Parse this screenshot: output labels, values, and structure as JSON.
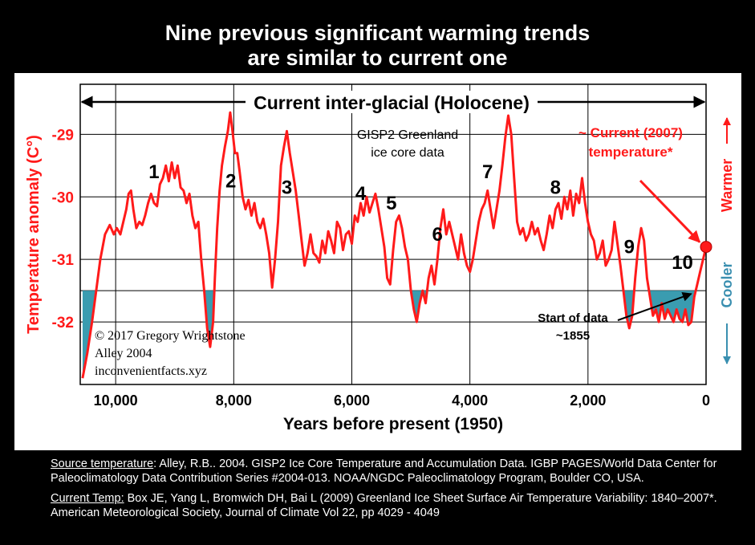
{
  "title_line1": "Nine previous significant warming trends",
  "title_line2": "are similar to current one",
  "colors": {
    "background": "#000000",
    "panel": "#ffffff",
    "curve": "#ff1a1a",
    "fill": "#3a9cb0",
    "arrow": "#000000",
    "axis_red": "#ff1a1a",
    "cooler": "#3a8fb0"
  },
  "chart_data": {
    "type": "line",
    "title": "",
    "xlabel": "Years before present (1950)",
    "ylabel": "Temperature anomaly (C°)",
    "x_ticks": [
      "10,000",
      "8,000",
      "6,000",
      "4,000",
      "2,000",
      "0"
    ],
    "x_tick_values": [
      10000,
      8000,
      6000,
      4000,
      2000,
      0
    ],
    "y_ticks": [
      "-29",
      "-30",
      "-31",
      "-32"
    ],
    "y_tick_values": [
      -29,
      -30,
      -31,
      -32
    ],
    "xlim": [
      10600,
      0
    ],
    "ylim": [
      -33.0,
      -28.2
    ],
    "grid": "vertical and horizontal lines at tick positions",
    "reference_line": -31.5,
    "holocene_label": "Current inter-glacial (Holocene)",
    "data_label": "GISP2 Greenland ice core data",
    "current_label": "~ Current (2007) temperature*",
    "start_label": "Start of data ~1855",
    "warmer_label": "Warmer",
    "cooler_label": "Cooler",
    "copyright": [
      "© 2017 Gregory Wrightstone",
      "Alley 2004",
      "inconvenientfacts.xyz"
    ],
    "warming_trends": [
      {
        "label": "1",
        "x": 9350,
        "y": -29.7
      },
      {
        "label": "2",
        "x": 8050,
        "y": -29.85
      },
      {
        "label": "3",
        "x": 7100,
        "y": -29.95
      },
      {
        "label": "4",
        "x": 5850,
        "y": -30.05
      },
      {
        "label": "5",
        "x": 5330,
        "y": -30.2
      },
      {
        "label": "6",
        "x": 4550,
        "y": -30.7
      },
      {
        "label": "7",
        "x": 3700,
        "y": -29.7
      },
      {
        "label": "8",
        "x": 2550,
        "y": -29.95
      },
      {
        "label": "9",
        "x": 1300,
        "y": -30.9
      },
      {
        "label": "10",
        "x": 400,
        "y": -31.15
      }
    ],
    "current_point": {
      "x": 0,
      "y": -30.8
    },
    "series": [
      {
        "values": [
          [
            10560,
            -32.9
          ],
          [
            10480,
            -32.5
          ],
          [
            10400,
            -32.0
          ],
          [
            10330,
            -31.5
          ],
          [
            10260,
            -31.0
          ],
          [
            10180,
            -30.6
          ],
          [
            10100,
            -30.45
          ],
          [
            10030,
            -30.6
          ],
          [
            9980,
            -30.5
          ],
          [
            9920,
            -30.6
          ],
          [
            9870,
            -30.4
          ],
          [
            9820,
            -30.2
          ],
          [
            9780,
            -29.95
          ],
          [
            9740,
            -29.9
          ],
          [
            9700,
            -30.2
          ],
          [
            9650,
            -30.5
          ],
          [
            9600,
            -30.4
          ],
          [
            9550,
            -30.45
          ],
          [
            9500,
            -30.3
          ],
          [
            9450,
            -30.1
          ],
          [
            9400,
            -29.95
          ],
          [
            9350,
            -30.1
          ],
          [
            9300,
            -30.15
          ],
          [
            9250,
            -29.8
          ],
          [
            9200,
            -29.7
          ],
          [
            9150,
            -29.5
          ],
          [
            9100,
            -29.75
          ],
          [
            9050,
            -29.45
          ],
          [
            9000,
            -29.7
          ],
          [
            8950,
            -29.5
          ],
          [
            8900,
            -29.85
          ],
          [
            8850,
            -29.9
          ],
          [
            8800,
            -30.1
          ],
          [
            8750,
            -29.95
          ],
          [
            8700,
            -30.3
          ],
          [
            8650,
            -30.5
          ],
          [
            8600,
            -30.4
          ],
          [
            8550,
            -31.0
          ],
          [
            8500,
            -31.5
          ],
          [
            8450,
            -32.1
          ],
          [
            8400,
            -32.4
          ],
          [
            8350,
            -32.0
          ],
          [
            8320,
            -31.3
          ],
          [
            8280,
            -30.5
          ],
          [
            8240,
            -29.9
          ],
          [
            8200,
            -29.5
          ],
          [
            8150,
            -29.2
          ],
          [
            8100,
            -28.95
          ],
          [
            8060,
            -28.65
          ],
          [
            8020,
            -28.95
          ],
          [
            7980,
            -29.3
          ],
          [
            7940,
            -29.3
          ],
          [
            7900,
            -29.6
          ],
          [
            7850,
            -30.0
          ],
          [
            7800,
            -30.2
          ],
          [
            7750,
            -30.05
          ],
          [
            7700,
            -30.3
          ],
          [
            7650,
            -30.1
          ],
          [
            7600,
            -30.4
          ],
          [
            7550,
            -30.5
          ],
          [
            7500,
            -30.35
          ],
          [
            7450,
            -30.6
          ],
          [
            7400,
            -30.9
          ],
          [
            7350,
            -31.45
          ],
          [
            7300,
            -31.0
          ],
          [
            7250,
            -30.4
          ],
          [
            7200,
            -29.5
          ],
          [
            7150,
            -29.2
          ],
          [
            7100,
            -28.95
          ],
          [
            7050,
            -29.3
          ],
          [
            7000,
            -29.6
          ],
          [
            6950,
            -29.9
          ],
          [
            6900,
            -30.3
          ],
          [
            6850,
            -30.7
          ],
          [
            6800,
            -31.1
          ],
          [
            6750,
            -30.9
          ],
          [
            6700,
            -30.6
          ],
          [
            6650,
            -30.9
          ],
          [
            6600,
            -30.95
          ],
          [
            6550,
            -31.05
          ],
          [
            6500,
            -30.7
          ],
          [
            6450,
            -30.9
          ],
          [
            6400,
            -30.55
          ],
          [
            6350,
            -30.7
          ],
          [
            6300,
            -30.9
          ],
          [
            6250,
            -30.4
          ],
          [
            6200,
            -30.5
          ],
          [
            6150,
            -30.85
          ],
          [
            6100,
            -30.6
          ],
          [
            6050,
            -30.55
          ],
          [
            6000,
            -30.75
          ],
          [
            5950,
            -30.3
          ],
          [
            5900,
            -30.4
          ],
          [
            5850,
            -30.1
          ],
          [
            5800,
            -30.3
          ],
          [
            5750,
            -30.0
          ],
          [
            5700,
            -30.25
          ],
          [
            5650,
            -30.1
          ],
          [
            5600,
            -29.95
          ],
          [
            5550,
            -30.2
          ],
          [
            5500,
            -30.5
          ],
          [
            5450,
            -30.8
          ],
          [
            5400,
            -31.3
          ],
          [
            5350,
            -31.4
          ],
          [
            5300,
            -30.85
          ],
          [
            5250,
            -30.4
          ],
          [
            5200,
            -30.3
          ],
          [
            5150,
            -30.5
          ],
          [
            5100,
            -30.8
          ],
          [
            5050,
            -31.0
          ],
          [
            5000,
            -31.5
          ],
          [
            4950,
            -31.8
          ],
          [
            4900,
            -32.0
          ],
          [
            4850,
            -31.7
          ],
          [
            4800,
            -31.5
          ],
          [
            4750,
            -31.7
          ],
          [
            4700,
            -31.3
          ],
          [
            4650,
            -31.1
          ],
          [
            4600,
            -31.4
          ],
          [
            4550,
            -31.0
          ],
          [
            4500,
            -30.5
          ],
          [
            4450,
            -30.2
          ],
          [
            4400,
            -30.6
          ],
          [
            4350,
            -30.4
          ],
          [
            4300,
            -30.6
          ],
          [
            4250,
            -30.8
          ],
          [
            4200,
            -31.0
          ],
          [
            4150,
            -30.6
          ],
          [
            4100,
            -30.9
          ],
          [
            4050,
            -31.1
          ],
          [
            4000,
            -31.2
          ],
          [
            3950,
            -31.0
          ],
          [
            3900,
            -30.7
          ],
          [
            3850,
            -30.4
          ],
          [
            3800,
            -30.2
          ],
          [
            3750,
            -30.1
          ],
          [
            3700,
            -29.9
          ],
          [
            3650,
            -30.2
          ],
          [
            3600,
            -30.5
          ],
          [
            3550,
            -30.2
          ],
          [
            3500,
            -29.9
          ],
          [
            3450,
            -29.5
          ],
          [
            3400,
            -29.05
          ],
          [
            3350,
            -28.7
          ],
          [
            3300,
            -29.0
          ],
          [
            3250,
            -29.7
          ],
          [
            3200,
            -30.4
          ],
          [
            3150,
            -30.6
          ],
          [
            3100,
            -30.5
          ],
          [
            3050,
            -30.7
          ],
          [
            3000,
            -30.6
          ],
          [
            2950,
            -30.4
          ],
          [
            2900,
            -30.6
          ],
          [
            2850,
            -30.5
          ],
          [
            2800,
            -30.7
          ],
          [
            2750,
            -30.85
          ],
          [
            2700,
            -30.6
          ],
          [
            2650,
            -30.3
          ],
          [
            2600,
            -30.5
          ],
          [
            2550,
            -30.2
          ],
          [
            2500,
            -30.1
          ],
          [
            2450,
            -30.35
          ],
          [
            2400,
            -30.0
          ],
          [
            2350,
            -30.2
          ],
          [
            2300,
            -29.9
          ],
          [
            2250,
            -30.3
          ],
          [
            2200,
            -29.95
          ],
          [
            2150,
            -30.1
          ],
          [
            2100,
            -29.7
          ],
          [
            2050,
            -30.1
          ],
          [
            2000,
            -30.4
          ],
          [
            1950,
            -30.6
          ],
          [
            1900,
            -30.7
          ],
          [
            1850,
            -31.0
          ],
          [
            1800,
            -30.9
          ],
          [
            1750,
            -30.7
          ],
          [
            1700,
            -31.1
          ],
          [
            1650,
            -31.0
          ],
          [
            1600,
            -30.85
          ],
          [
            1550,
            -30.4
          ],
          [
            1500,
            -30.75
          ],
          [
            1450,
            -31.1
          ],
          [
            1400,
            -31.5
          ],
          [
            1350,
            -31.9
          ],
          [
            1300,
            -32.1
          ],
          [
            1250,
            -31.9
          ],
          [
            1200,
            -31.3
          ],
          [
            1150,
            -30.8
          ],
          [
            1100,
            -30.5
          ],
          [
            1050,
            -30.7
          ],
          [
            1000,
            -31.3
          ],
          [
            950,
            -31.6
          ],
          [
            900,
            -31.9
          ],
          [
            850,
            -31.8
          ],
          [
            800,
            -32.0
          ],
          [
            750,
            -31.7
          ],
          [
            700,
            -31.95
          ],
          [
            650,
            -31.8
          ],
          [
            600,
            -31.9
          ],
          [
            550,
            -32.0
          ],
          [
            500,
            -31.8
          ],
          [
            450,
            -31.95
          ],
          [
            400,
            -32.0
          ],
          [
            350,
            -31.8
          ],
          [
            300,
            -32.05
          ],
          [
            250,
            -32.0
          ],
          [
            200,
            -31.6
          ],
          [
            150,
            -31.4
          ],
          [
            100,
            -31.2
          ],
          [
            50,
            -31.0
          ],
          [
            0,
            -30.8
          ]
        ]
      }
    ]
  },
  "sources": {
    "temp_label": "Source temperature",
    "temp_text": ": Alley, R.B.. 2004. GISP2 Ice Core Temperature and Accumulation Data. IGBP PAGES/World Data Center for Paleoclimatology Data Contribution Series #2004-013. NOAA/NGDC Paleoclimatology Program, Boulder CO, USA.",
    "current_label": "Current Temp:",
    "current_text": " Box JE, Yang L, Bromwich DH, Bai L (2009) Greenland Ice Sheet Surface Air Temperature Variability: 1840–2007*. American Meteorological Society, Journal of Climate Vol 22, pp 4029 - 4049"
  }
}
